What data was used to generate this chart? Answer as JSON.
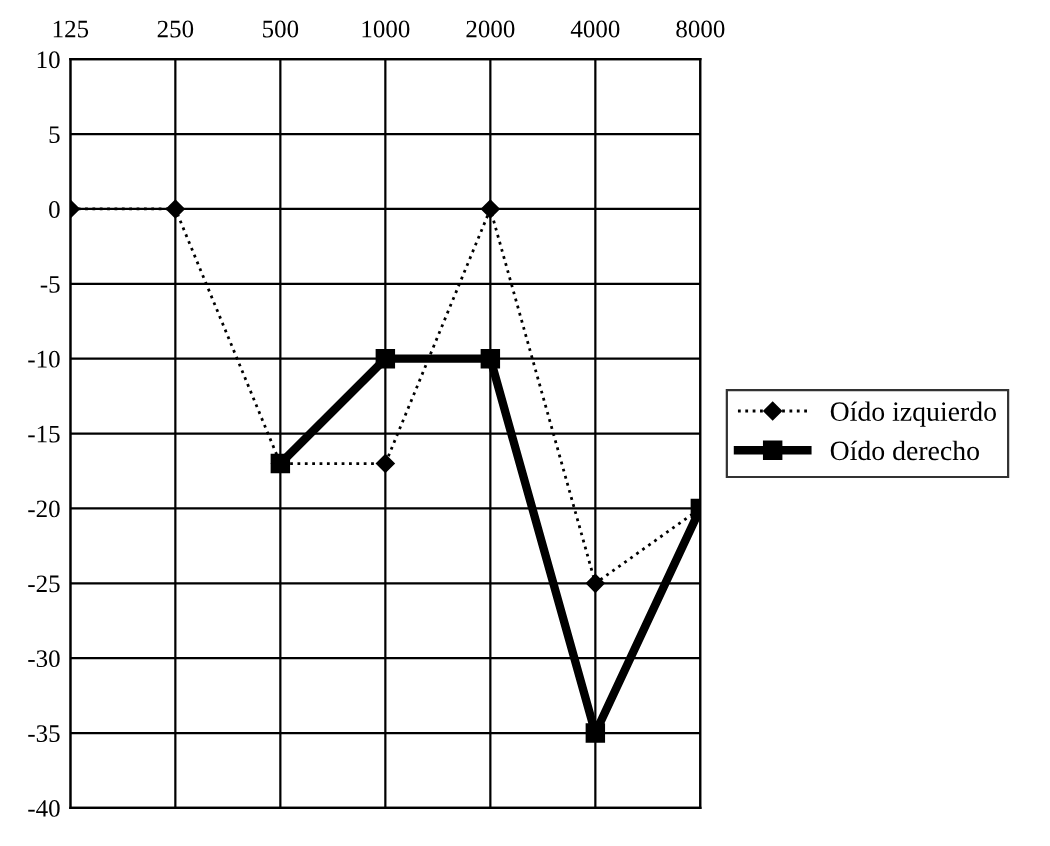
{
  "chart_data": {
    "type": "line",
    "categories": [
      "125",
      "250",
      "500",
      "1000",
      "2000",
      "4000",
      "8000"
    ],
    "series": [
      {
        "name": "Oído izquierdo",
        "color": "#000000",
        "marker": "diamond",
        "line_style": "dotted",
        "values": [
          0,
          0,
          -17,
          -17,
          0,
          -25,
          -20
        ]
      },
      {
        "name": "Oído derecho",
        "color": "#000000",
        "marker": "square",
        "line_style": "solid",
        "values": [
          null,
          null,
          -17,
          -10,
          -10,
          -35,
          -20
        ]
      }
    ],
    "ylim": [
      -40,
      10
    ],
    "yticks": [
      -40,
      -35,
      -30,
      -25,
      -20,
      -15,
      -10,
      -5,
      0,
      5,
      10
    ],
    "grid": true,
    "legend": "right"
  }
}
